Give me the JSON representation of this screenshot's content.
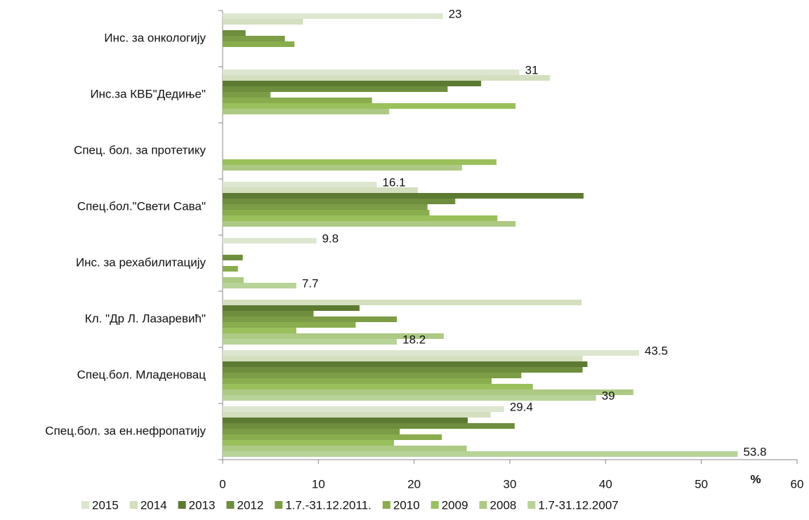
{
  "chart_data": {
    "type": "barh",
    "xlabel": "%",
    "categories": [
      "Инс. за онкологију",
      "Инс.за КВБ\"Дедиње\"",
      "Спец. бол. за протетику",
      "Спец.бол.\"Свети Сава\"",
      "Инс. за рехабилитацију",
      "Кл. \"Др Л. Лазаревић\"",
      "Спец.бол. Младеновац",
      "Спец.бол. за ен.нефропатију"
    ],
    "series": [
      {
        "name": "2015",
        "color": "#dde6cf",
        "show_labels": true,
        "values": [
          23,
          31,
          null,
          16.1,
          9.8,
          null,
          43.5,
          29.4
        ]
      },
      {
        "name": "2014",
        "color": "#d3dfbf",
        "values": [
          8.4,
          34.2,
          null,
          20.4,
          null,
          37.5,
          37.6,
          28
        ]
      },
      {
        "name": "2013",
        "color": "#5d7a33",
        "values": [
          null,
          27,
          null,
          37.7,
          null,
          14.3,
          38.1,
          25.6
        ]
      },
      {
        "name": "2012",
        "color": "#6e8d3d",
        "values": [
          2.4,
          23.5,
          null,
          24.3,
          2.1,
          9.5,
          37.6,
          30.5
        ]
      },
      {
        "name": "1.7.-31.12.2011.",
        "color": "#7c9c46",
        "values": [
          6.5,
          5,
          null,
          21.4,
          null,
          18.2,
          31.2,
          18.5
        ]
      },
      {
        "name": "2010",
        "color": "#89ad4d",
        "values": [
          7.5,
          15.6,
          null,
          21.6,
          1.6,
          13.9,
          28.1,
          22.9
        ]
      },
      {
        "name": "2009",
        "color": "#9ac05b",
        "values": [
          null,
          30.6,
          28.6,
          28.7,
          null,
          7.7,
          32.4,
          17.9
        ]
      },
      {
        "name": "2008",
        "color": "#adc984",
        "values": [
          null,
          17.4,
          25,
          30.6,
          2.2,
          23.1,
          42.9,
          25.5
        ]
      },
      {
        "name": "1.7-31.12.2007",
        "color": "#b8d398",
        "show_labels": true,
        "values": [
          null,
          null,
          null,
          null,
          7.7,
          18.2,
          39,
          53.8
        ]
      }
    ],
    "xlim": [
      0,
      60
    ],
    "xticks": [
      0,
      10,
      20,
      30,
      40,
      50,
      60
    ],
    "grid": false
  }
}
